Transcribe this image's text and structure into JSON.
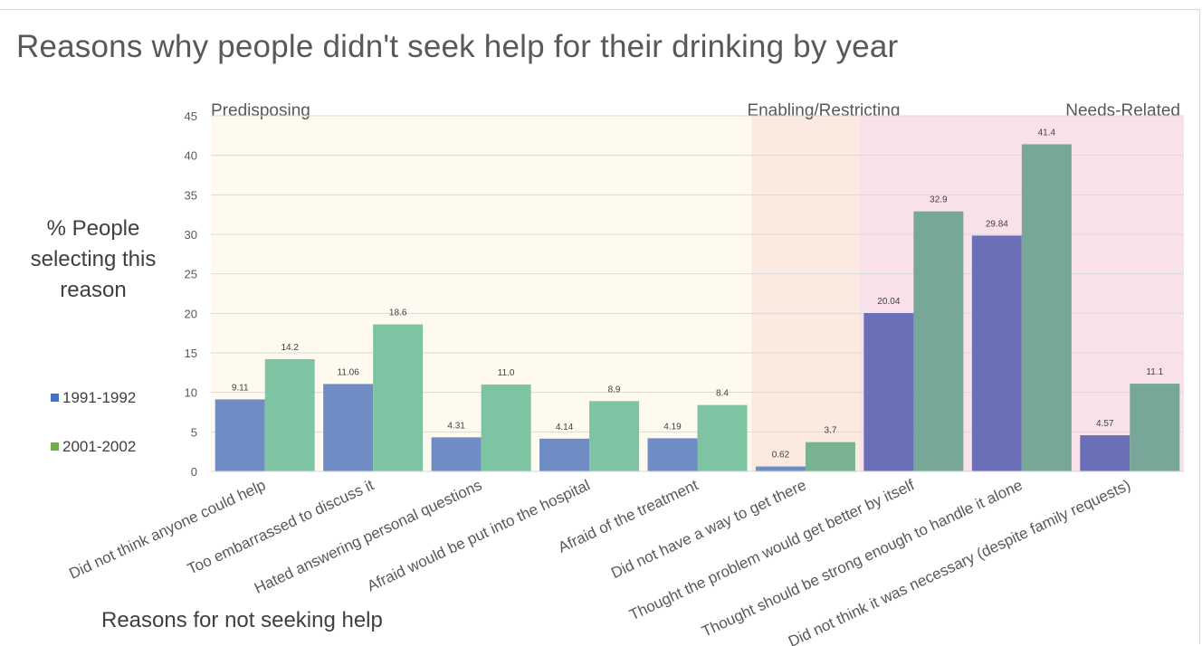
{
  "chart_data": {
    "type": "bar",
    "title": "Reasons why people didn't seek help for their drinking by year",
    "ylabel": "% People selecting this reason",
    "xlabel": "Reasons for not seeking help",
    "ylim": [
      0,
      45
    ],
    "yticks": [
      0,
      5,
      10,
      15,
      20,
      25,
      30,
      35,
      40,
      45
    ],
    "grid": true,
    "legend_position": "left",
    "categories": [
      "Did not think anyone could help",
      "Too embarrassed to discuss it",
      "Hated answering personal questions",
      "Afraid would be put into the hospital",
      "Afraid of the treatment",
      "Did not have a way to get there",
      "Thought the problem would get better by itself",
      "Thought should be strong enough to handle it alone",
      "Did not think it was necessary (despite family  requests)"
    ],
    "series": [
      {
        "name": "1991-1992",
        "values": [
          9.11,
          11.06,
          4.31,
          4.14,
          4.19,
          0.62,
          20.04,
          29.84,
          4.57
        ],
        "labels": [
          "9.11",
          "11.06",
          "4.31",
          "4.14",
          "4.19",
          "0.62",
          "20.04",
          "29.84",
          "4.57"
        ]
      },
      {
        "name": "2001-2002",
        "values": [
          14.2,
          18.6,
          11.0,
          8.9,
          8.4,
          3.7,
          32.9,
          41.4,
          11.1
        ],
        "labels": [
          "14.2",
          "18.6",
          "11.0",
          "8.9",
          "8.4",
          "3.7",
          "32.9",
          "41.4",
          "11.1"
        ]
      }
    ],
    "groups": [
      {
        "name": "Predisposing",
        "categories": [
          0,
          4
        ]
      },
      {
        "name": "Enabling/Restricting",
        "categories": [
          5,
          5
        ]
      },
      {
        "name": "Needs-Related",
        "categories": [
          6,
          8
        ]
      }
    ]
  },
  "colors": {
    "series_1991_1992": "#6f8cc4",
    "series_1991_1992_needs": "#6a6fb8",
    "series_2001_2002": "#7fc4a2",
    "series_2001_2002_enabling": "#7ab392",
    "series_2001_2002_needs": "#77a798",
    "legend_1991_1992": "#4472c4",
    "legend_2001_2002": "#70ad47",
    "band_predisposing": "#fffaf0",
    "band_enabling": "#fbeadf",
    "band_needs": "#f9e1ea",
    "gridline": "#d9d9d9",
    "text": "#595959"
  }
}
